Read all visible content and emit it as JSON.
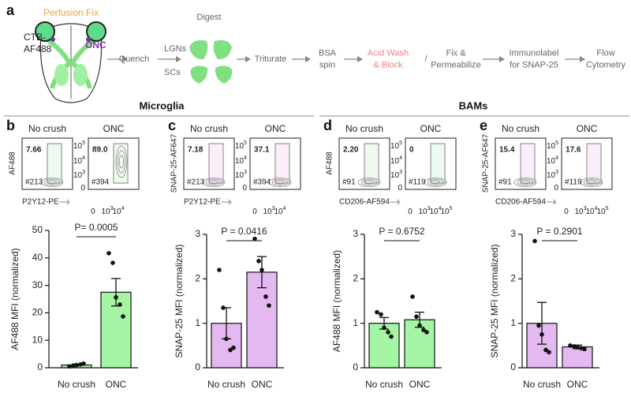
{
  "workflow": {
    "letter": "a",
    "perfusion": "Perfusion Fix",
    "tracer": [
      "CTB-",
      "AF488"
    ],
    "injury": "ONC",
    "steps": [
      {
        "lines": [
          "Quench"
        ]
      },
      {
        "lines": [
          "Digest"
        ]
      },
      {
        "lines": [
          "Triturate"
        ]
      },
      {
        "lines": [
          "BSA",
          "spin"
        ]
      },
      {
        "lines": [
          "Acid Wash",
          "& Block"
        ]
      },
      {
        "lines": [
          "/"
        ]
      },
      {
        "lines": [
          "Fix &",
          "Permeabilize"
        ]
      },
      {
        "lines": [
          "Immunolabel",
          "for SNAP-25"
        ]
      },
      {
        "lines": [
          "Flow",
          "Cytometry"
        ]
      }
    ],
    "regions": [
      "LGNs",
      "SCs"
    ]
  },
  "sections": [
    "Microglia",
    "BAMs"
  ],
  "flow_panels": [
    {
      "letter": "b",
      "ylabel": "AF488",
      "xlabel": "P2Y12-PE",
      "plots": [
        {
          "title": "No crush",
          "gate": "7.66",
          "count": "#213"
        },
        {
          "title": "ONC",
          "gate": "89.0",
          "count": "#394"
        }
      ],
      "yticks": [
        [
          "10",
          "5"
        ],
        [
          "10",
          "4"
        ],
        [
          "10",
          "3"
        ],
        [
          "0"
        ]
      ],
      "xticks": [
        [
          "0"
        ],
        [
          "10",
          "3"
        ],
        [
          "10",
          "4"
        ]
      ]
    },
    {
      "letter": "c",
      "ylabel": "SNAP-25-AF647",
      "xlabel": "P2Y12-PE",
      "plots": [
        {
          "title": "No crush",
          "gate": "7.18",
          "count": "#213"
        },
        {
          "title": "ONC",
          "gate": "37.1",
          "count": "#394"
        }
      ],
      "yticks": [
        [
          "10",
          "5"
        ],
        [
          "10",
          "4"
        ],
        [
          "10",
          "3"
        ],
        [
          "0"
        ]
      ],
      "xticks": [
        [
          "0"
        ],
        [
          "10",
          "3"
        ],
        [
          "10",
          "4"
        ]
      ]
    },
    {
      "letter": "d",
      "ylabel": "AF488",
      "xlabel": "CD206-AF594",
      "plots": [
        {
          "title": "No crush",
          "gate": "2.20",
          "count": "#91"
        },
        {
          "title": "ONC",
          "gate": "0",
          "count": "#119"
        }
      ],
      "yticks": [
        [
          "10",
          "5"
        ],
        [
          "10",
          "4"
        ],
        [
          "10",
          "3"
        ],
        [
          "0"
        ]
      ],
      "xticks": [
        [
          "0"
        ],
        [
          "10",
          "3"
        ],
        [
          "10",
          "4"
        ],
        [
          "10",
          "5"
        ]
      ]
    },
    {
      "letter": "e",
      "ylabel": "SNAP-25-AF647",
      "xlabel": "CD206-AF594",
      "plots": [
        {
          "title": "No crush",
          "gate": "15.4",
          "count": "#91"
        },
        {
          "title": "ONC",
          "gate": "17.6",
          "count": "#119"
        }
      ],
      "yticks": [
        [
          "10",
          "5"
        ],
        [
          "10",
          "4"
        ],
        [
          "10",
          "3"
        ],
        [
          "0"
        ]
      ],
      "xticks": [
        [
          "0"
        ],
        [
          "10",
          "3"
        ],
        [
          "10",
          "4"
        ],
        [
          "10",
          "5"
        ]
      ]
    }
  ],
  "chart_data": [
    {
      "type": "bar",
      "ylabel": "AF488 MFI (normalized)",
      "categories": [
        "No crush",
        "ONC"
      ],
      "values": [
        1,
        27.5
      ],
      "errors": [
        0.3,
        5
      ],
      "color": "#a4f5a4",
      "points": [
        [
          0.5,
          0.8,
          1,
          1.2,
          1.5
        ],
        [
          41.7,
          38.2,
          25.6,
          23,
          18.7
        ]
      ],
      "ylim": [
        0,
        50
      ],
      "yticks": [
        0,
        10,
        20,
        30,
        40,
        50
      ],
      "annotation": "P= 0.0005"
    },
    {
      "type": "bar",
      "ylabel": "SNAP-25 MFI (normalized)",
      "categories": [
        "No crush",
        "ONC"
      ],
      "values": [
        1,
        2.15
      ],
      "errors": [
        0.35,
        0.35
      ],
      "color": "#e4b8f0",
      "points": [
        [
          2.2,
          1.35,
          0.65,
          0.4,
          0.45
        ],
        [
          2.9,
          2.4,
          2.2,
          1.6,
          1.4
        ]
      ],
      "ylim": [
        0,
        3
      ],
      "yticks": [
        0,
        1,
        2,
        3
      ],
      "annotation": "P = 0.0416"
    },
    {
      "type": "bar",
      "ylabel": "AF488 MFI (normalized)",
      "categories": [
        "No crush",
        "ONC"
      ],
      "values": [
        1,
        1.08
      ],
      "errors": [
        0.13,
        0.17
      ],
      "color": "#a4f5a4",
      "points": [
        [
          1.25,
          1.2,
          0.9,
          0.8,
          0.7
        ],
        [
          1.6,
          1.15,
          0.95,
          0.85,
          0.8
        ]
      ],
      "ylim": [
        0,
        3
      ],
      "yticks": [
        0,
        1,
        2,
        3
      ],
      "annotation": "P = 0.6752"
    },
    {
      "type": "bar",
      "ylabel": "SNAP-25 MFI (normalized)",
      "categories": [
        "No crush",
        "ONC"
      ],
      "values": [
        1,
        0.47
      ],
      "errors": [
        0.47,
        0.04
      ],
      "color": "#e4b8f0",
      "points": [
        [
          2.85,
          0.95,
          0.75,
          0.4,
          0.35
        ],
        [
          0.5,
          0.48,
          0.46,
          0.44,
          0.42
        ]
      ],
      "ylim": [
        0,
        3
      ],
      "yticks": [
        0,
        1,
        2,
        3
      ],
      "annotation": "P = 0.2901"
    }
  ]
}
